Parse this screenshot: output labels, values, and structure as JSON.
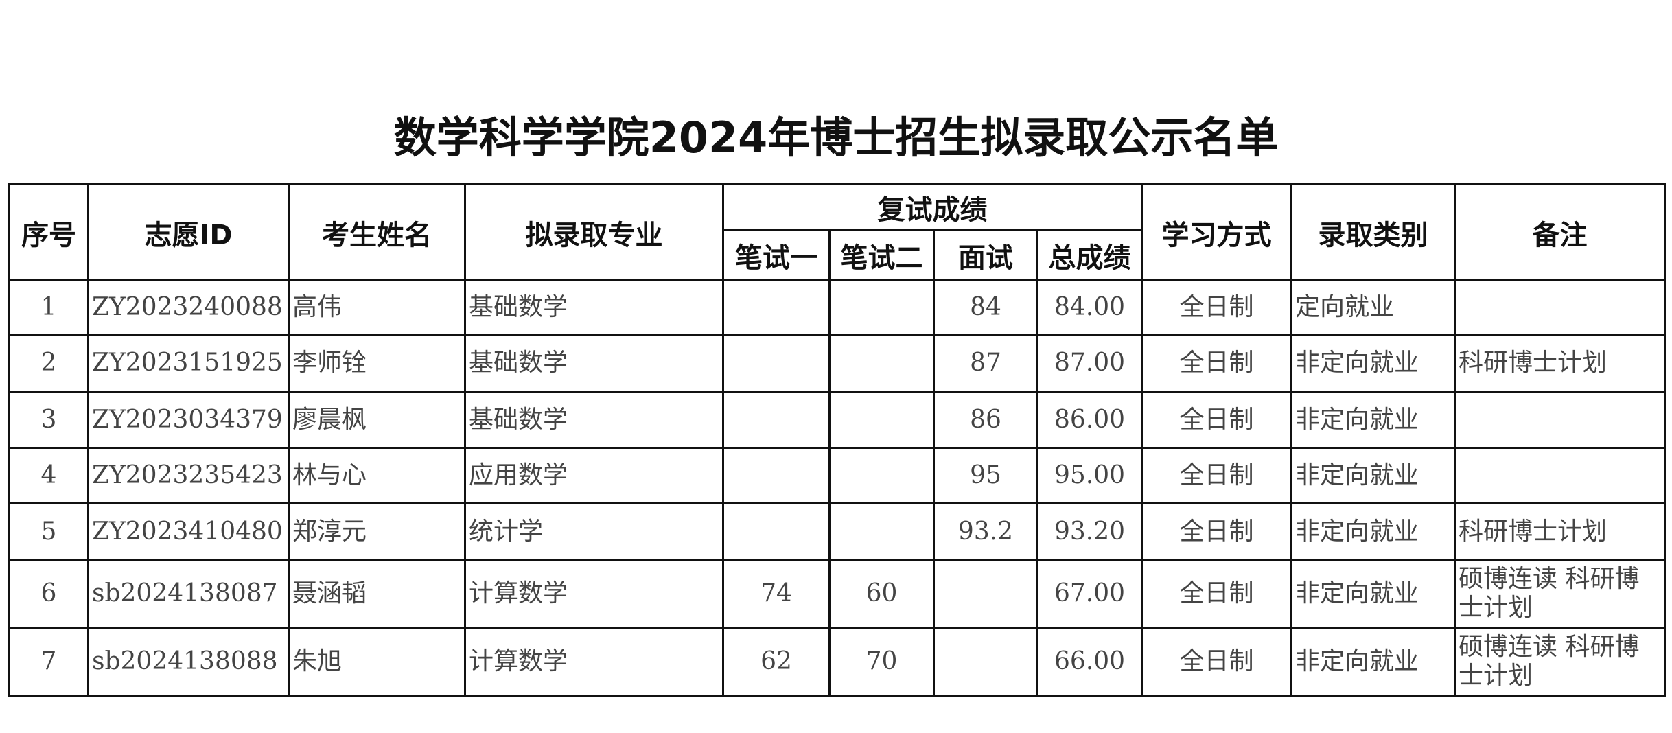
{
  "title": "数学科学学院2024年博士招生拟录取公示名单",
  "headers": {
    "seq": "序号",
    "id": "志愿ID",
    "name": "考生姓名",
    "major": "拟录取专业",
    "retest": "复试成绩",
    "written1": "笔试一",
    "written2": "笔试二",
    "interview": "面试",
    "total": "总成绩",
    "mode": "学习方式",
    "category": "录取类别",
    "remark": "备注"
  },
  "rows": [
    {
      "seq": "1",
      "id": "ZY2023240088",
      "name": "高伟",
      "major": "基础数学",
      "written1": "",
      "written2": "",
      "interview": "84",
      "total": "84.00",
      "mode": "全日制",
      "category": "定向就业",
      "remark": ""
    },
    {
      "seq": "2",
      "id": "ZY2023151925",
      "name": "李师铨",
      "major": "基础数学",
      "written1": "",
      "written2": "",
      "interview": "87",
      "total": "87.00",
      "mode": "全日制",
      "category": "非定向就业",
      "remark": "科研博士计划"
    },
    {
      "seq": "3",
      "id": "ZY2023034379",
      "name": "廖晨枫",
      "major": "基础数学",
      "written1": "",
      "written2": "",
      "interview": "86",
      "total": "86.00",
      "mode": "全日制",
      "category": "非定向就业",
      "remark": ""
    },
    {
      "seq": "4",
      "id": "ZY2023235423",
      "name": "林与心",
      "major": "应用数学",
      "written1": "",
      "written2": "",
      "interview": "95",
      "total": "95.00",
      "mode": "全日制",
      "category": "非定向就业",
      "remark": ""
    },
    {
      "seq": "5",
      "id": "ZY2023410480",
      "name": "郑淳元",
      "major": "统计学",
      "written1": "",
      "written2": "",
      "interview": "93.2",
      "total": "93.20",
      "mode": "全日制",
      "category": "非定向就业",
      "remark": "科研博士计划"
    },
    {
      "seq": "6",
      "id": "sb2024138087",
      "name": "聂涵韬",
      "major": "计算数学",
      "written1": "74",
      "written2": "60",
      "interview": "",
      "total": "67.00",
      "mode": "全日制",
      "category": "非定向就业",
      "remark": "硕博连读 科研博士计划"
    },
    {
      "seq": "7",
      "id": "sb2024138088",
      "name": "朱旭",
      "major": "计算数学",
      "written1": "62",
      "written2": "70",
      "interview": "",
      "total": "66.00",
      "mode": "全日制",
      "category": "非定向就业",
      "remark": "硕博连读 科研博士计划"
    }
  ]
}
